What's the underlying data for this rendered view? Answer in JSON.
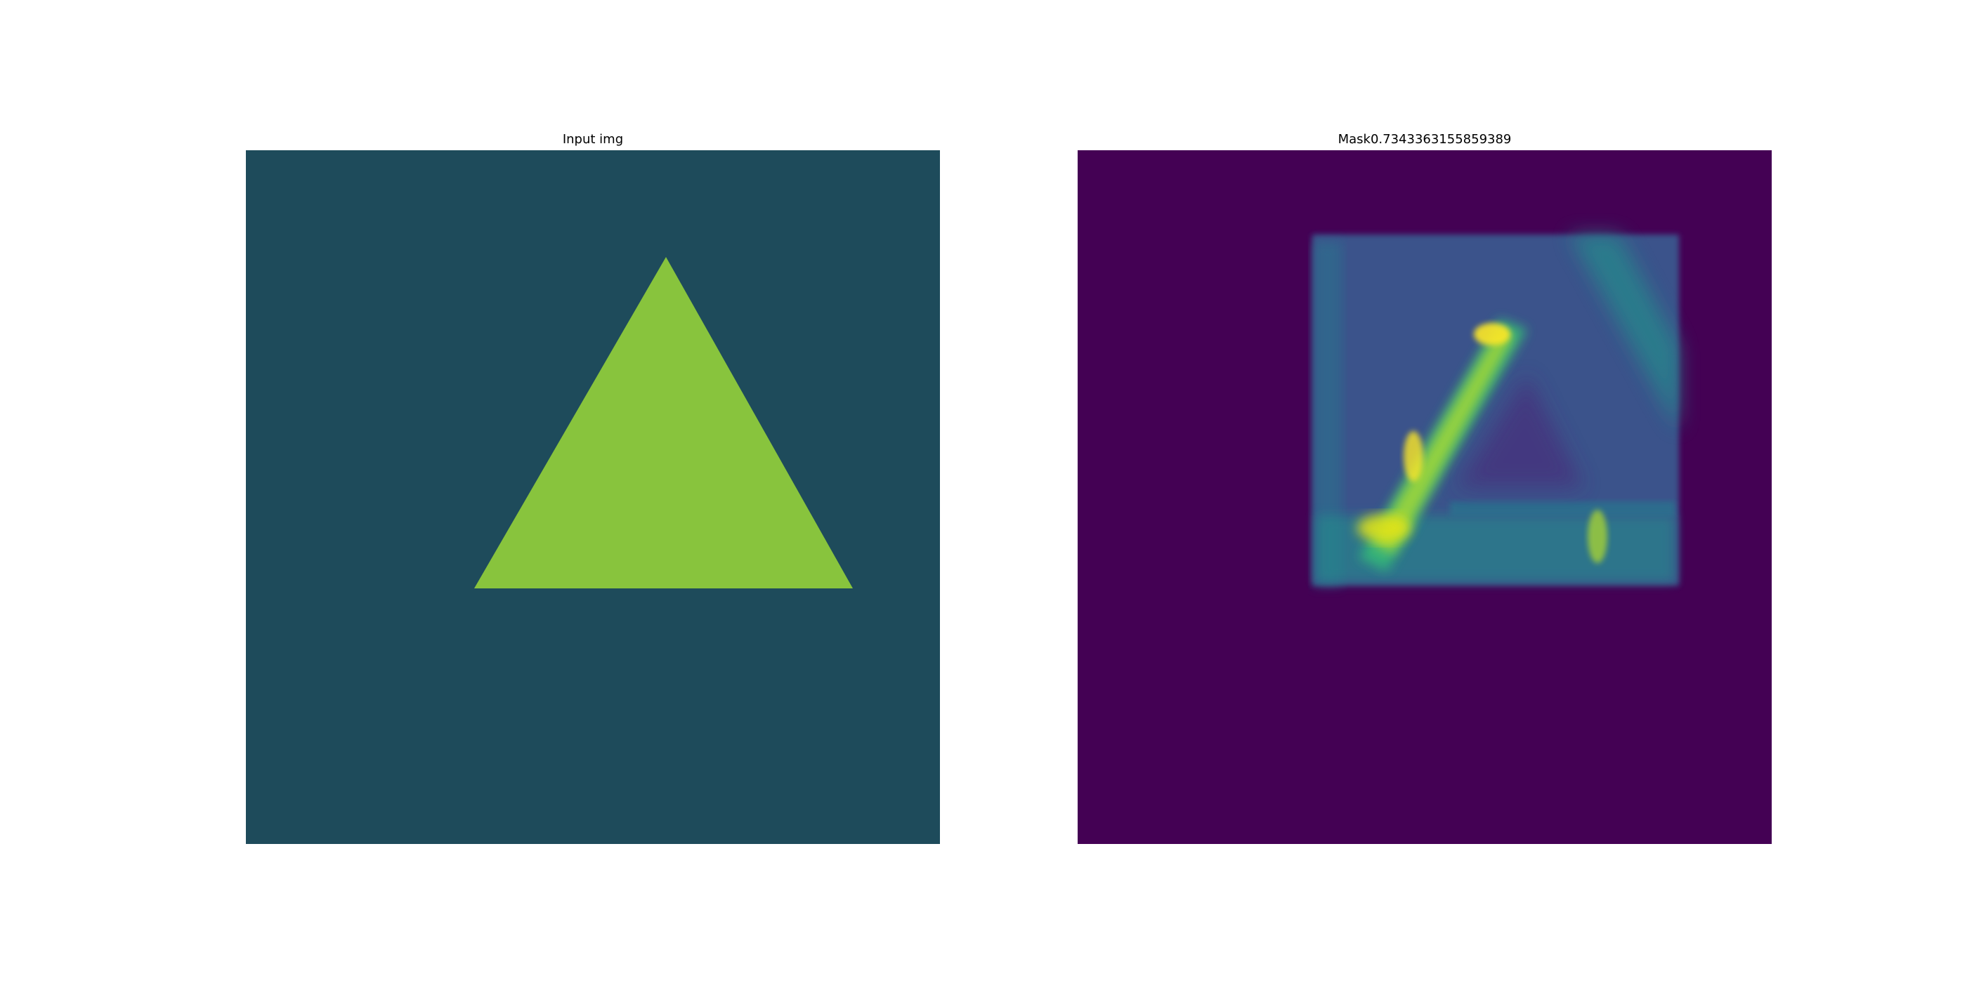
{
  "figure": {
    "panels": [
      {
        "title": "Input img",
        "kind": "image",
        "background_color": "#1e4b5b",
        "shape": {
          "type": "triangle",
          "fill_color": "#88c43d"
        }
      },
      {
        "title": "Mask0.7343363155859389",
        "kind": "heatmap",
        "colormap": "viridis",
        "background_color": "#440154"
      }
    ]
  }
}
